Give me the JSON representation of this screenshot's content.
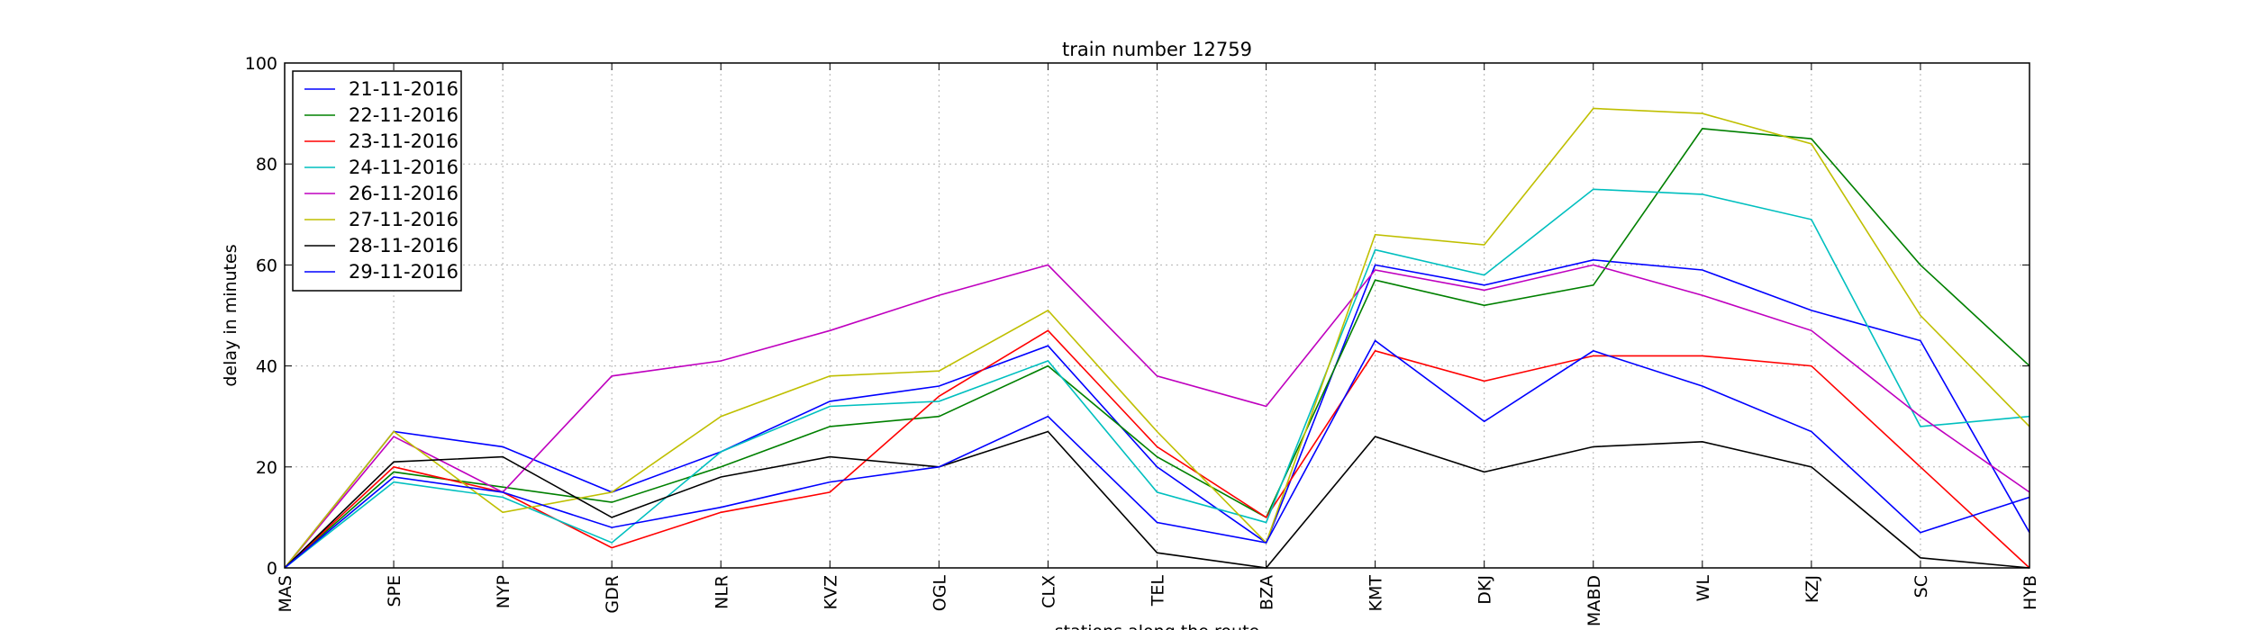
{
  "chart_data": {
    "type": "line",
    "title": "train number 12759",
    "xlabel": "stations along the route",
    "ylabel": "delay in minutes",
    "categories": [
      "MAS",
      "SPE",
      "NYP",
      "GDR",
      "NLR",
      "KVZ",
      "OGL",
      "CLX",
      "TEL",
      "BZA",
      "KMT",
      "DKJ",
      "MABD",
      "WL",
      "KZJ",
      "SC",
      "HYB"
    ],
    "ylim": [
      0,
      100
    ],
    "yticks": [
      0,
      20,
      40,
      60,
      80,
      100
    ],
    "grid": true,
    "legend_position": "top-left",
    "series": [
      {
        "name": "21-11-2016",
        "color": "#0000ff",
        "values": [
          0,
          27,
          24,
          15,
          23,
          33,
          36,
          44,
          20,
          5,
          60,
          56,
          61,
          59,
          51,
          45,
          7
        ]
      },
      {
        "name": "22-11-2016",
        "color": "#008000",
        "values": [
          0,
          19,
          16,
          13,
          20,
          28,
          30,
          40,
          22,
          10,
          57,
          52,
          56,
          87,
          85,
          60,
          40
        ]
      },
      {
        "name": "23-11-2016",
        "color": "#ff0000",
        "values": [
          0,
          20,
          15,
          4,
          11,
          15,
          34,
          47,
          24,
          10,
          43,
          37,
          42,
          42,
          40,
          20,
          0
        ]
      },
      {
        "name": "24-11-2016",
        "color": "#00bfbf",
        "values": [
          0,
          17,
          14,
          5,
          23,
          32,
          33,
          41,
          15,
          9,
          63,
          58,
          75,
          74,
          69,
          28,
          30
        ]
      },
      {
        "name": "26-11-2016",
        "color": "#bf00bf",
        "values": [
          0,
          26,
          15,
          38,
          41,
          47,
          54,
          60,
          38,
          32,
          59,
          55,
          60,
          54,
          47,
          30,
          15
        ]
      },
      {
        "name": "27-11-2016",
        "color": "#bfbf00",
        "values": [
          0,
          27,
          11,
          15,
          30,
          38,
          39,
          51,
          27,
          5,
          66,
          64,
          91,
          90,
          84,
          50,
          28
        ]
      },
      {
        "name": "28-11-2016",
        "color": "#000000",
        "values": [
          0,
          21,
          22,
          10,
          18,
          22,
          20,
          27,
          3,
          0,
          26,
          19,
          24,
          25,
          20,
          2,
          0
        ]
      },
      {
        "name": "29-11-2016",
        "color": "#0000ff",
        "values": [
          0,
          18,
          15,
          8,
          12,
          17,
          20,
          30,
          9,
          5,
          45,
          29,
          43,
          36,
          27,
          7,
          14
        ]
      }
    ]
  }
}
